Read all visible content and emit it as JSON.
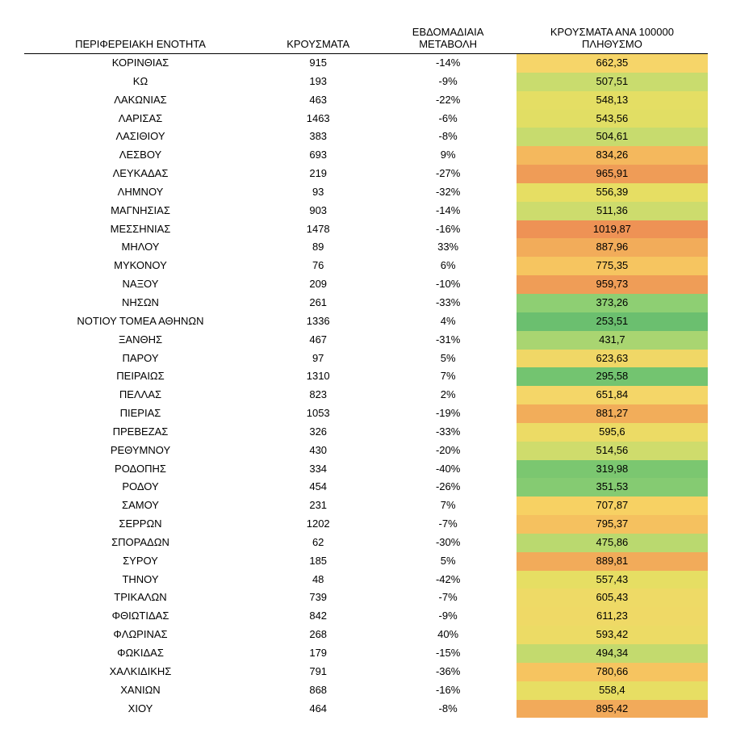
{
  "table": {
    "type": "table",
    "background_color": "#ffffff",
    "text_color": "#000000",
    "font_family": "Arial",
    "header_fontsize": 13,
    "cell_fontsize": 13,
    "header_border": "1px solid #000000",
    "column_widths_pct": [
      34,
      18,
      20,
      28
    ],
    "alignment": [
      "center",
      "center",
      "center",
      "center"
    ],
    "shaded_column_index": 3,
    "shade_scale_notes": "red ≈ high per-100k, green ≈ low, yellow/orange mid",
    "columns": [
      "ΠΕΡΙΦΕΡΕΙΑΚΗ ΕΝΟΤΗΤΑ",
      "ΚΡΟΥΣΜΑΤΑ",
      "ΕΒΔΟΜΑΔΙΑΙΑ ΜΕΤΑΒΟΛΗ",
      "ΚΡΟΥΣΜΑΤΑ ΑΝΑ 100000 ΠΛΗΘΥΣΜΟ"
    ],
    "rows": [
      {
        "region": "ΚΟΡΙΝΘΙΑΣ",
        "cases": "915",
        "weekly_change": "-14%",
        "per_100k": "662,35",
        "shade": "#f6d569"
      },
      {
        "region": "ΚΩ",
        "cases": "193",
        "weekly_change": "-9%",
        "per_100k": "507,51",
        "shade": "#c9dc6e"
      },
      {
        "region": "ΛΑΚΩΝΙΑΣ",
        "cases": "463",
        "weekly_change": "-22%",
        "per_100k": "548,13",
        "shade": "#e4de64"
      },
      {
        "region": "ΛΑΡΙΣΑΣ",
        "cases": "1463",
        "weekly_change": "-6%",
        "per_100k": "543,56",
        "shade": "#e1de64"
      },
      {
        "region": "ΛΑΣΙΘΙΟΥ",
        "cases": "383",
        "weekly_change": "-8%",
        "per_100k": "504,61",
        "shade": "#c7db6e"
      },
      {
        "region": "ΛΕΣΒΟΥ",
        "cases": "693",
        "weekly_change": "9%",
        "per_100k": "834,26",
        "shade": "#f4b85d"
      },
      {
        "region": "ΛΕΥΚΑΔΑΣ",
        "cases": "219",
        "weekly_change": "-27%",
        "per_100k": "965,91",
        "shade": "#ef9c57"
      },
      {
        "region": "ΛΗΜΝΟΥ",
        "cases": "93",
        "weekly_change": "-32%",
        "per_100k": "556,39",
        "shade": "#e6de63"
      },
      {
        "region": "ΜΑΓΝΗΣΙΑΣ",
        "cases": "903",
        "weekly_change": "-14%",
        "per_100k": "511,36",
        "shade": "#cddc6d"
      },
      {
        "region": "ΜΕΣΣΗΝΙΑΣ",
        "cases": "1478",
        "weekly_change": "-16%",
        "per_100k": "1019,87",
        "shade": "#ee9255"
      },
      {
        "region": "ΜΗΛΟΥ",
        "cases": "89",
        "weekly_change": "33%",
        "per_100k": "887,96",
        "shade": "#f2ac5a"
      },
      {
        "region": "ΜΥΚΟΝΟΥ",
        "cases": "76",
        "weekly_change": "6%",
        "per_100k": "775,35",
        "shade": "#f6c560"
      },
      {
        "region": "ΝΑΞΟΥ",
        "cases": "209",
        "weekly_change": "-10%",
        "per_100k": "959,73",
        "shade": "#ef9d57"
      },
      {
        "region": "ΝΗΣΩΝ",
        "cases": "261",
        "weekly_change": "-33%",
        "per_100k": "373,26",
        "shade": "#8ecf73"
      },
      {
        "region": "ΝΟΤΙΟΥ ΤΟΜΕΑ ΑΘΗΝΩΝ",
        "cases": "1336",
        "weekly_change": "4%",
        "per_100k": "253,51",
        "shade": "#6bbf6f"
      },
      {
        "region": "ΞΑΝΘΗΣ",
        "cases": "467",
        "weekly_change": "-31%",
        "per_100k": "431,7",
        "shade": "#a9d571"
      },
      {
        "region": "ΠΑΡΟΥ",
        "cases": "97",
        "weekly_change": "5%",
        "per_100k": "623,63",
        "shade": "#f0d766"
      },
      {
        "region": "ΠΕΙΡΑΙΩΣ",
        "cases": "1310",
        "weekly_change": "7%",
        "per_100k": "295,58",
        "shade": "#73c470"
      },
      {
        "region": "ΠΕΛΛΑΣ",
        "cases": "823",
        "weekly_change": "2%",
        "per_100k": "651,84",
        "shade": "#f4d668"
      },
      {
        "region": "ΠΙΕΡΙΑΣ",
        "cases": "1053",
        "weekly_change": "-19%",
        "per_100k": "881,27",
        "shade": "#f2ad5a"
      },
      {
        "region": "ΠΡΕΒΕΖΑΣ",
        "cases": "326",
        "weekly_change": "-33%",
        "per_100k": "595,6",
        "shade": "#ecdb65"
      },
      {
        "region": "ΡΕΘΥΜΝΟΥ",
        "cases": "430",
        "weekly_change": "-20%",
        "per_100k": "514,56",
        "shade": "#cfdc6c"
      },
      {
        "region": "ΡΟΔΟΠΗΣ",
        "cases": "334",
        "weekly_change": "-40%",
        "per_100k": "319,98",
        "shade": "#7bc770"
      },
      {
        "region": "ΡΟΔΟΥ",
        "cases": "454",
        "weekly_change": "-26%",
        "per_100k": "351,53",
        "shade": "#85cb72"
      },
      {
        "region": "ΣΑΜΟΥ",
        "cases": "231",
        "weekly_change": "7%",
        "per_100k": "707,87",
        "shade": "#f7d163"
      },
      {
        "region": "ΣΕΡΡΩΝ",
        "cases": "1202",
        "weekly_change": "-7%",
        "per_100k": "795,37",
        "shade": "#f5c15f"
      },
      {
        "region": "ΣΠΟΡΑΔΩΝ",
        "cases": "62",
        "weekly_change": "-30%",
        "per_100k": "475,86",
        "shade": "#bad96f"
      },
      {
        "region": "ΣΥΡΟΥ",
        "cases": "185",
        "weekly_change": "5%",
        "per_100k": "889,81",
        "shade": "#f2ab5a"
      },
      {
        "region": "ΤΗΝΟΥ",
        "cases": "48",
        "weekly_change": "-42%",
        "per_100k": "557,43",
        "shade": "#e6de63"
      },
      {
        "region": "ΤΡΙΚΑΛΩΝ",
        "cases": "739",
        "weekly_change": "-7%",
        "per_100k": "605,43",
        "shade": "#eeda66"
      },
      {
        "region": "ΦΘΙΩΤΙΔΑΣ",
        "cases": "842",
        "weekly_change": "-9%",
        "per_100k": "611,23",
        "shade": "#efd966"
      },
      {
        "region": "ΦΛΩΡΙΝΑΣ",
        "cases": "268",
        "weekly_change": "40%",
        "per_100k": "593,42",
        "shade": "#ecdb65"
      },
      {
        "region": "ΦΩΚΙΔΑΣ",
        "cases": "179",
        "weekly_change": "-15%",
        "per_100k": "494,34",
        "shade": "#c3da6e"
      },
      {
        "region": "ΧΑΛΚΙΔΙΚΗΣ",
        "cases": "791",
        "weekly_change": "-36%",
        "per_100k": "780,66",
        "shade": "#f6c460"
      },
      {
        "region": "ΧΑΝΙΩΝ",
        "cases": "868",
        "weekly_change": "-16%",
        "per_100k": "558,4",
        "shade": "#e7de63"
      },
      {
        "region": "ΧΙΟΥ",
        "cases": "464",
        "weekly_change": "-8%",
        "per_100k": "895,42",
        "shade": "#f2aa5a"
      }
    ]
  }
}
